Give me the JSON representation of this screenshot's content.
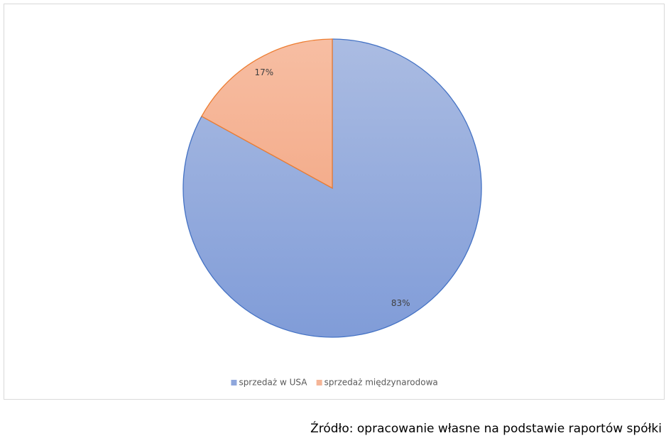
{
  "chart_data": {
    "type": "pie",
    "categories": [
      "sprzedaż w USA",
      "sprzedaż międzynarodowa"
    ],
    "values": [
      83,
      17
    ],
    "value_labels": [
      "83%",
      "17%"
    ],
    "colors": [
      "#8fa7dc",
      "#f5b597"
    ],
    "edge_colors": [
      "#4472c4",
      "#ed7d31"
    ],
    "legend": "bottom",
    "source": "Źródło: opracowanie własne na podstawie raportów spółki"
  }
}
